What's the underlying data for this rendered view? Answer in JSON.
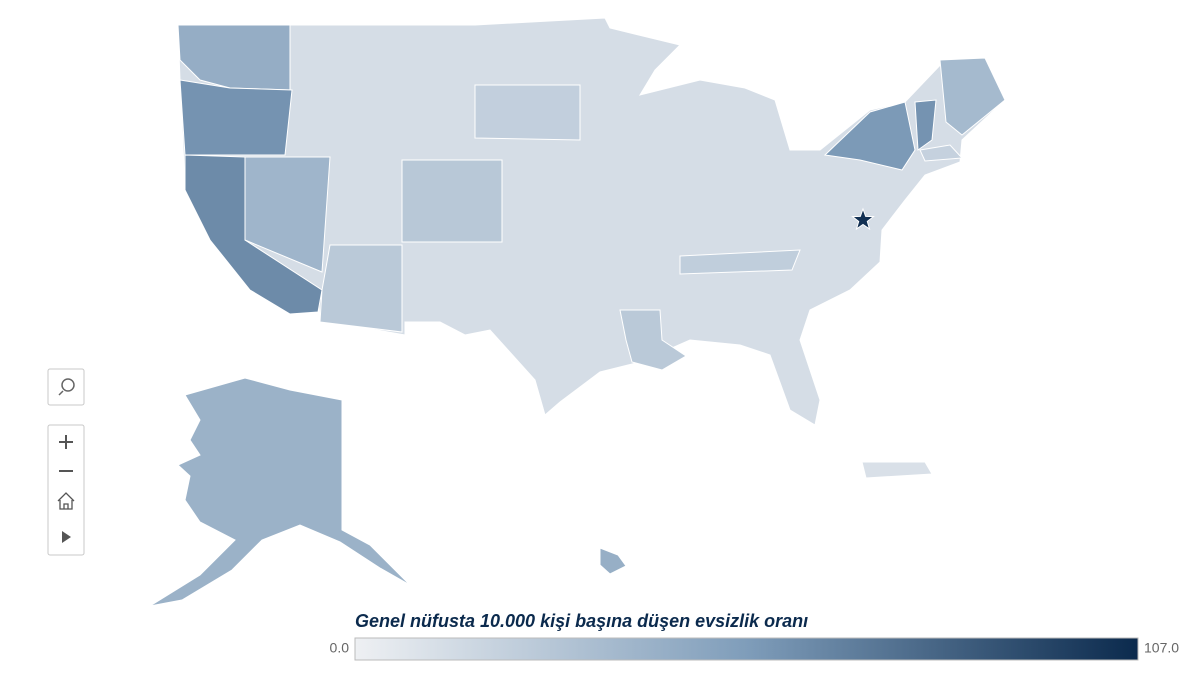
{
  "chart_data": {
    "type": "choropleth",
    "legend_title": "Genel nüfusta 10.000 kişi başına düşen evsizlik oranı",
    "scale": [
      {
        "value": 0,
        "label": "0.0"
      },
      {
        "value": 107,
        "label": "107.0"
      }
    ],
    "scale_colors": [
      "#eef0f3",
      "#7f9dba",
      "#0b2a4d"
    ],
    "values": [
      12,
      43,
      58,
      62,
      38,
      25,
      26,
      55,
      58,
      35,
      40,
      42,
      10,
      25,
      22,
      20,
      21,
      104
    ]
  }
}
